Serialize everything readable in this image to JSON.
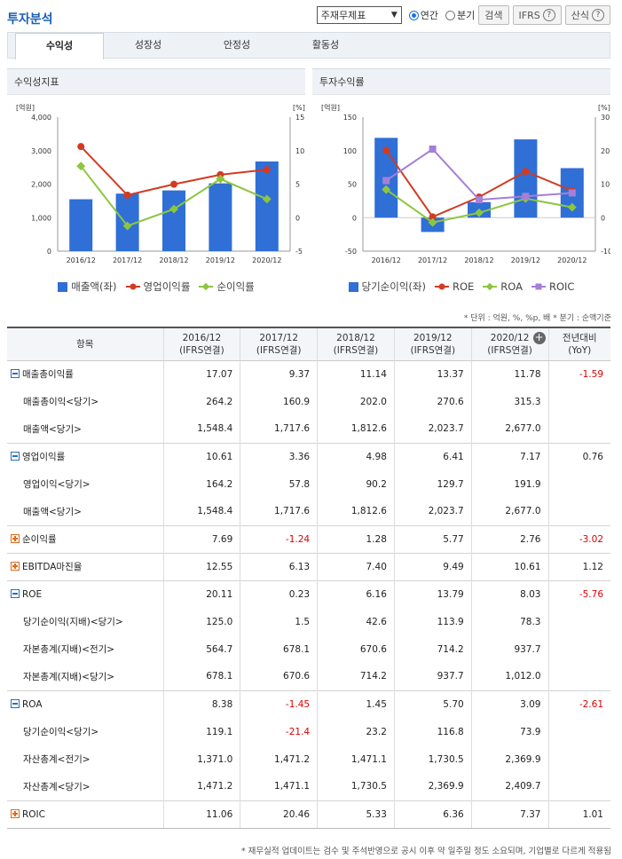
{
  "header": {
    "title": "투자분석",
    "select_value": "주재무제표",
    "radio_annual": "연간",
    "radio_quarter": "분기",
    "search_button": "검색",
    "ifrs_button": "IFRS",
    "formula_button": "산식"
  },
  "tabs": [
    "수익성",
    "성장성",
    "안정성",
    "활동성"
  ],
  "colors": {
    "bar": "#2f6fd6",
    "red": "#d23b22",
    "green": "#8cc63f",
    "purple": "#a57fd8"
  },
  "chart_data": [
    {
      "type": "bar+line",
      "title": "수익성지표",
      "left_unit": "[억원]",
      "right_unit": "[%]",
      "categories": [
        "2016/12",
        "2017/12",
        "2018/12",
        "2019/12",
        "2020/12"
      ],
      "left_ticks": [
        "4,000",
        "3,000",
        "2,000",
        "1,000",
        "0"
      ],
      "right_ticks": [
        "15",
        "10",
        "5",
        "0",
        "-5"
      ],
      "left_range": [
        0,
        4000
      ],
      "right_range": [
        -5,
        15
      ],
      "bars": {
        "name": "매출액(좌)",
        "values": [
          1548.4,
          1717.6,
          1812.6,
          2023.7,
          2677.0
        ]
      },
      "lines": [
        {
          "name": "영업이익률",
          "color": "red",
          "values": [
            10.61,
            3.36,
            4.98,
            6.41,
            7.17
          ]
        },
        {
          "name": "순이익률",
          "color": "green",
          "values": [
            7.69,
            -1.24,
            1.28,
            5.77,
            2.76
          ]
        }
      ]
    },
    {
      "type": "bar+line",
      "title": "투자수익률",
      "left_unit": "[억원]",
      "right_unit": "[%]",
      "categories": [
        "2016/12",
        "2017/12",
        "2018/12",
        "2019/12",
        "2020/12"
      ],
      "left_ticks": [
        "150",
        "100",
        "50",
        "0",
        "-50"
      ],
      "right_ticks": [
        "30",
        "20",
        "10",
        "0",
        "-10"
      ],
      "left_range": [
        -50,
        150
      ],
      "right_range": [
        -10,
        30
      ],
      "bars": {
        "name": "당기순이익(좌)",
        "values": [
          119.1,
          -21.4,
          23.2,
          116.8,
          73.9
        ]
      },
      "lines": [
        {
          "name": "ROE",
          "color": "red",
          "values": [
            20.11,
            0.23,
            6.16,
            13.79,
            8.03
          ]
        },
        {
          "name": "ROA",
          "color": "green",
          "values": [
            8.38,
            -1.45,
            1.45,
            5.7,
            3.09
          ]
        },
        {
          "name": "ROIC",
          "color": "purple",
          "values": [
            11.06,
            20.46,
            5.33,
            6.36,
            7.37
          ]
        }
      ]
    }
  ],
  "unit_note": "* 단위 : 억원, %, %p, 배   * 분기 : 순액기준",
  "table": {
    "head_item": "항목",
    "columns": [
      {
        "year": "2016/12",
        "basis": "(IFRS연결)"
      },
      {
        "year": "2017/12",
        "basis": "(IFRS연결)"
      },
      {
        "year": "2018/12",
        "basis": "(IFRS연결)"
      },
      {
        "year": "2019/12",
        "basis": "(IFRS연결)"
      },
      {
        "year": "2020/12",
        "basis": "(IFRS연결)"
      }
    ],
    "yoy_title": "전년대비",
    "yoy_sub": "(YoY)",
    "rows": [
      {
        "label": "매출총이익률",
        "kind": "minus",
        "values": [
          "17.07",
          "9.37",
          "11.14",
          "13.37",
          "11.78"
        ],
        "yoy": "-1.59"
      },
      {
        "label": "매출총이익<당기>",
        "kind": "sub",
        "values": [
          "264.2",
          "160.9",
          "202.0",
          "270.6",
          "315.3"
        ],
        "yoy": ""
      },
      {
        "label": "매출액<당기>",
        "kind": "sub",
        "values": [
          "1,548.4",
          "1,717.6",
          "1,812.6",
          "2,023.7",
          "2,677.0"
        ],
        "yoy": ""
      },
      {
        "label": "영업이익률",
        "kind": "minus",
        "values": [
          "10.61",
          "3.36",
          "4.98",
          "6.41",
          "7.17"
        ],
        "yoy": "0.76"
      },
      {
        "label": "영업이익<당기>",
        "kind": "sub",
        "values": [
          "164.2",
          "57.8",
          "90.2",
          "129.7",
          "191.9"
        ],
        "yoy": ""
      },
      {
        "label": "매출액<당기>",
        "kind": "sub",
        "values": [
          "1,548.4",
          "1,717.6",
          "1,812.6",
          "2,023.7",
          "2,677.0"
        ],
        "yoy": ""
      },
      {
        "label": "순이익률",
        "kind": "plus",
        "values": [
          "7.69",
          "-1.24",
          "1.28",
          "5.77",
          "2.76"
        ],
        "yoy": "-3.02"
      },
      {
        "label": "EBITDA마진율",
        "kind": "plus",
        "values": [
          "12.55",
          "6.13",
          "7.40",
          "9.49",
          "10.61"
        ],
        "yoy": "1.12"
      },
      {
        "label": "ROE",
        "kind": "minus",
        "values": [
          "20.11",
          "0.23",
          "6.16",
          "13.79",
          "8.03"
        ],
        "yoy": "-5.76"
      },
      {
        "label": "당기순이익(지배)<당기>",
        "kind": "sub",
        "values": [
          "125.0",
          "1.5",
          "42.6",
          "113.9",
          "78.3"
        ],
        "yoy": ""
      },
      {
        "label": "자본총계(지배)<전기>",
        "kind": "sub",
        "values": [
          "564.7",
          "678.1",
          "670.6",
          "714.2",
          "937.7"
        ],
        "yoy": ""
      },
      {
        "label": "자본총계(지배)<당기>",
        "kind": "sub",
        "values": [
          "678.1",
          "670.6",
          "714.2",
          "937.7",
          "1,012.0"
        ],
        "yoy": ""
      },
      {
        "label": "ROA",
        "kind": "minus",
        "values": [
          "8.38",
          "-1.45",
          "1.45",
          "5.70",
          "3.09"
        ],
        "yoy": "-2.61"
      },
      {
        "label": "당기순이익<당기>",
        "kind": "sub",
        "values": [
          "119.1",
          "-21.4",
          "23.2",
          "116.8",
          "73.9"
        ],
        "yoy": ""
      },
      {
        "label": "자산총계<전기>",
        "kind": "sub",
        "values": [
          "1,371.0",
          "1,471.2",
          "1,471.1",
          "1,730.5",
          "2,369.9"
        ],
        "yoy": ""
      },
      {
        "label": "자산총계<당기>",
        "kind": "sub",
        "values": [
          "1,471.2",
          "1,471.1",
          "1,730.5",
          "2,369.9",
          "2,409.7"
        ],
        "yoy": ""
      },
      {
        "label": "ROIC",
        "kind": "plus",
        "values": [
          "11.06",
          "20.46",
          "5.33",
          "6.36",
          "7.37"
        ],
        "yoy": "1.01"
      }
    ]
  },
  "footnote": "* 재무실적 업데이트는 검수 및 주석반영으로 공시 이후 약 일주일 정도 소요되며, 기업별로 다르게 적용됨"
}
